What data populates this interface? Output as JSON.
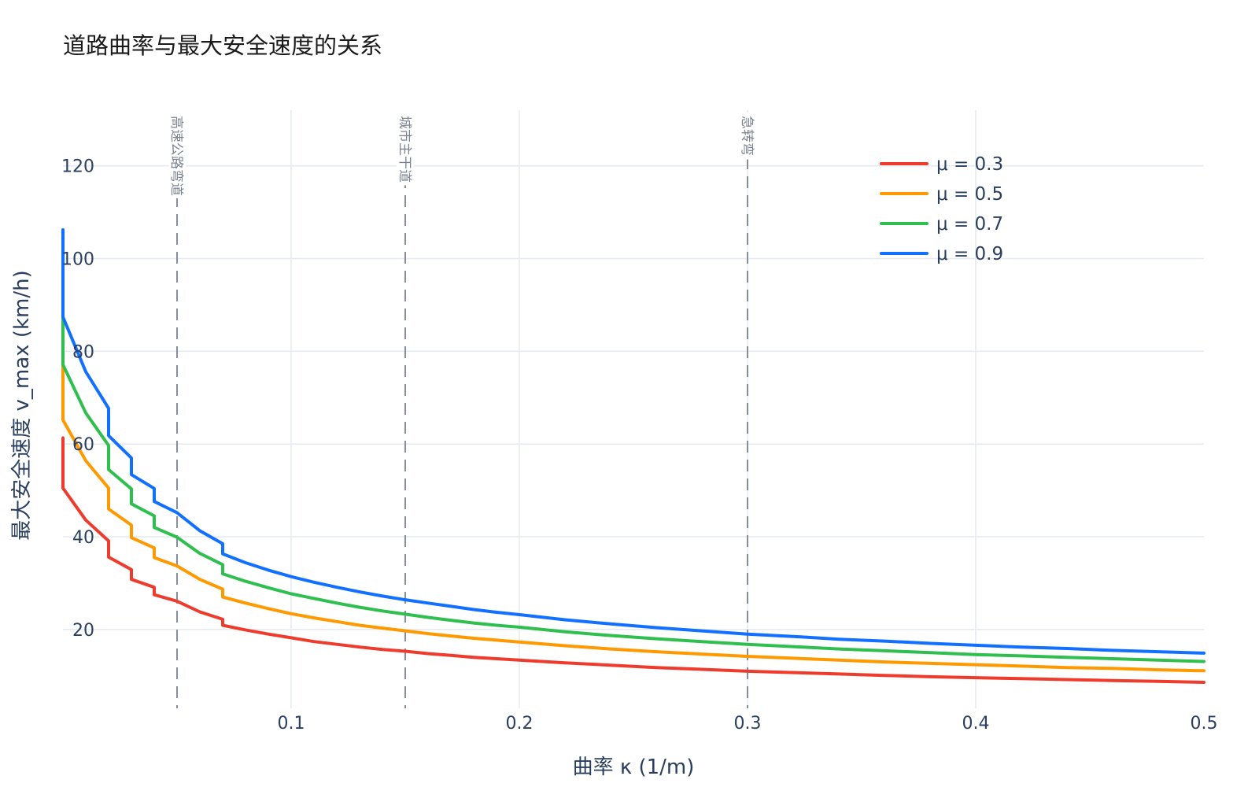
{
  "chart_data": {
    "type": "line",
    "title": "道路曲率与最大安全速度的关系",
    "xlabel": "曲率 κ (1/m)",
    "ylabel": "最大安全速度 v_max (km/h)",
    "xlim": [
      0.0,
      0.5
    ],
    "ylim": [
      3,
      132
    ],
    "x_ticks": [
      0.1,
      0.2,
      0.3,
      0.4,
      0.5
    ],
    "x_tick_labels": [
      "0.1",
      "0.2",
      "0.3",
      "0.4",
      "0.5"
    ],
    "y_ticks": [
      20,
      40,
      60,
      80,
      100,
      120
    ],
    "y_tick_labels": [
      "20",
      "40",
      "60",
      "80",
      "100",
      "120"
    ],
    "grid": true,
    "legend_position": "top-right",
    "x": [
      0.0,
      0.0,
      0.01,
      0.02,
      0.02,
      0.03,
      0.03,
      0.04,
      0.04,
      0.05,
      0.06,
      0.07,
      0.07,
      0.08,
      0.09,
      0.1,
      0.11,
      0.12,
      0.13,
      0.14,
      0.15,
      0.16,
      0.17,
      0.18,
      0.19,
      0.2,
      0.22,
      0.24,
      0.26,
      0.28,
      0.3,
      0.32,
      0.34,
      0.36,
      0.38,
      0.4,
      0.42,
      0.44,
      0.46,
      0.48,
      0.5
    ],
    "series": [
      {
        "name": "μ = 0.3",
        "color": "#ef3b2c",
        "values": [
          61.3,
          50.5,
          43.6,
          39.1,
          35.6,
          32.9,
          30.8,
          29.1,
          27.5,
          26.1,
          23.8,
          22.2,
          20.9,
          19.9,
          19.0,
          18.2,
          17.4,
          16.8,
          16.2,
          15.7,
          15.3,
          14.8,
          14.4,
          14.0,
          13.7,
          13.4,
          12.8,
          12.3,
          11.8,
          11.4,
          11.0,
          10.7,
          10.4,
          10.1,
          9.8,
          9.6,
          9.4,
          9.2,
          9.0,
          8.8,
          8.6
        ]
      },
      {
        "name": "μ = 0.5",
        "color": "#ff9900",
        "values": [
          79.2,
          65.2,
          56.4,
          50.5,
          46.0,
          42.5,
          39.8,
          37.6,
          35.5,
          33.7,
          30.8,
          28.7,
          27.0,
          25.7,
          24.5,
          23.4,
          22.5,
          21.7,
          20.9,
          20.3,
          19.7,
          19.1,
          18.6,
          18.1,
          17.7,
          17.3,
          16.5,
          15.8,
          15.2,
          14.7,
          14.2,
          13.8,
          13.4,
          13.0,
          12.7,
          12.4,
          12.1,
          11.8,
          11.6,
          11.3,
          11.1
        ]
      },
      {
        "name": "μ = 0.7",
        "color": "#2fbf4f",
        "values": [
          93.7,
          77.1,
          66.7,
          59.7,
          54.5,
          50.3,
          47.1,
          44.5,
          42.0,
          39.9,
          36.4,
          34.0,
          32.0,
          30.4,
          29.0,
          27.7,
          26.7,
          25.7,
          24.8,
          24.0,
          23.3,
          22.6,
          22.0,
          21.4,
          20.9,
          20.5,
          19.5,
          18.7,
          18.0,
          17.4,
          16.8,
          16.3,
          15.8,
          15.4,
          15.0,
          14.6,
          14.3,
          14.0,
          13.7,
          13.4,
          13.1
        ]
      },
      {
        "name": "μ = 0.9",
        "color": "#1170ff",
        "values": [
          106.2,
          87.4,
          75.6,
          67.7,
          61.8,
          57.0,
          53.4,
          50.4,
          47.6,
          45.2,
          41.3,
          38.5,
          36.3,
          34.4,
          32.8,
          31.4,
          30.2,
          29.1,
          28.1,
          27.2,
          26.4,
          25.7,
          25.0,
          24.3,
          23.7,
          23.2,
          22.1,
          21.2,
          20.4,
          19.7,
          19.0,
          18.5,
          17.9,
          17.5,
          17.0,
          16.6,
          16.2,
          15.9,
          15.5,
          15.2,
          14.9
        ]
      }
    ],
    "reference_lines": [
      {
        "x": 0.05,
        "label": "高速公路弯道"
      },
      {
        "x": 0.15,
        "label": "城市主干道"
      },
      {
        "x": 0.3,
        "label": "急转弯"
      }
    ]
  }
}
